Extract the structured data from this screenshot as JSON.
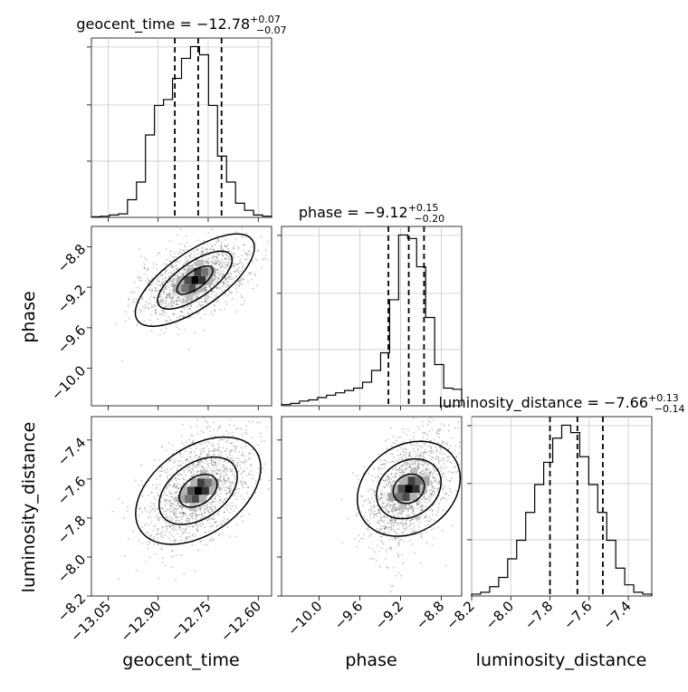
{
  "chart_data": {
    "type": "corner",
    "parameters": [
      "geocent_time",
      "phase",
      "luminosity_distance"
    ],
    "titles": [
      {
        "parameter": "geocent_time",
        "label": "geocent_time",
        "median": "−12.78",
        "plus": "+0.07",
        "minus": "−0.07"
      },
      {
        "parameter": "phase",
        "label": "phase",
        "median": "−9.12",
        "plus": "+0.15",
        "minus": "−0.20"
      },
      {
        "parameter": "luminosity_distance",
        "label": "luminosity_distance",
        "median": "−7.66",
        "plus": "+0.13",
        "minus": "−0.14"
      }
    ],
    "ranges": {
      "geocent_time": [
        -13.1,
        -12.56
      ],
      "phase": [
        -10.37,
        -8.6
      ],
      "luminosity_distance": [
        -8.2,
        -7.28
      ]
    },
    "ticks": {
      "geocent_time": [
        -13.05,
        -12.9,
        -12.75,
        -12.6
      ],
      "geocent_time_labels": [
        "−13.05",
        "−12.90",
        "−12.75",
        "−12.60"
      ],
      "phase": [
        -10.0,
        -9.6,
        -9.2,
        -8.8
      ],
      "phase_labels": [
        "−10.0",
        "−9.6",
        "−9.2",
        "−8.8"
      ],
      "luminosity_distance": [
        -8.2,
        -8.0,
        -7.8,
        -7.6,
        -7.4
      ],
      "luminosity_distance_labels": [
        "−8.2",
        "−8.0",
        "−7.8",
        "−7.6",
        "−7.4"
      ]
    },
    "quantiles": {
      "geocent_time": [
        -12.85,
        -12.78,
        -12.71
      ],
      "phase": [
        -9.32,
        -9.12,
        -8.97
      ],
      "luminosity_distance": [
        -7.8,
        -7.66,
        -7.53
      ]
    },
    "histograms": {
      "geocent_time": {
        "edges_range": [
          -13.1,
          -12.56
        ],
        "counts": [
          0.5,
          1,
          2,
          3,
          15,
          30,
          70,
          95,
          100,
          118,
          135,
          145,
          138,
          95,
          52,
          30,
          12,
          6,
          2,
          1
        ]
      },
      "phase": {
        "edges_range": [
          -10.37,
          -8.6
        ],
        "counts": [
          1,
          2,
          4,
          5,
          7,
          9,
          11,
          13,
          15,
          20,
          30,
          45,
          90,
          145,
          142,
          118,
          75,
          35,
          15,
          14
        ]
      },
      "luminosity_distance": {
        "edges_range": [
          -8.2,
          -7.28
        ],
        "counts": [
          1,
          2,
          5,
          10,
          20,
          30,
          45,
          60,
          72,
          85,
          92,
          88,
          75,
          60,
          45,
          30,
          15,
          6,
          2,
          1
        ]
      }
    },
    "pairs": [
      {
        "x": "geocent_time",
        "y": "phase",
        "center": [
          -12.79,
          -9.13
        ],
        "sigma": [
          0.07,
          0.16
        ]
      },
      {
        "x": "geocent_time",
        "y": "luminosity_distance",
        "center": [
          -12.78,
          -7.66
        ],
        "sigma": [
          0.07,
          0.13
        ]
      },
      {
        "x": "phase",
        "y": "luminosity_distance",
        "center": [
          -9.12,
          -7.65
        ],
        "sigma": [
          0.18,
          0.13
        ]
      }
    ],
    "grid": true
  }
}
